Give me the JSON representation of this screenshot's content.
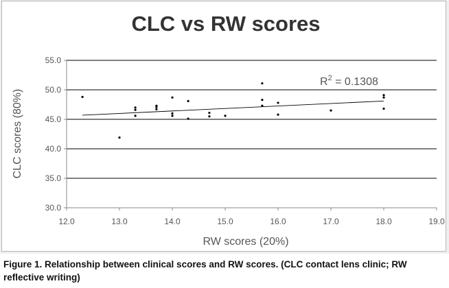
{
  "chart_data": {
    "type": "scatter",
    "title": "CLC vs RW scores",
    "xlabel": "RW scores (20%)",
    "ylabel": "CLC scores (80%)",
    "xlim": [
      12.0,
      19.0
    ],
    "ylim": [
      30.0,
      55.0
    ],
    "xticks": [
      "12.0",
      "13.0",
      "14.0",
      "15.0",
      "16.0",
      "17.0",
      "18.0",
      "19.0"
    ],
    "yticks": [
      "30.0",
      "35.0",
      "40.0",
      "45.0",
      "50.0",
      "55.0"
    ],
    "grid": "horizontal",
    "points": [
      {
        "x": 12.3,
        "y": 48.8
      },
      {
        "x": 13.0,
        "y": 41.9
      },
      {
        "x": 13.3,
        "y": 47.0
      },
      {
        "x": 13.3,
        "y": 46.6
      },
      {
        "x": 13.3,
        "y": 45.6
      },
      {
        "x": 13.7,
        "y": 47.3
      },
      {
        "x": 13.7,
        "y": 47.1
      },
      {
        "x": 13.7,
        "y": 46.7
      },
      {
        "x": 14.0,
        "y": 48.7
      },
      {
        "x": 14.0,
        "y": 46.0
      },
      {
        "x": 14.0,
        "y": 45.6
      },
      {
        "x": 14.3,
        "y": 48.1
      },
      {
        "x": 14.3,
        "y": 45.1
      },
      {
        "x": 14.7,
        "y": 46.1
      },
      {
        "x": 14.7,
        "y": 45.5
      },
      {
        "x": 15.0,
        "y": 45.6
      },
      {
        "x": 15.7,
        "y": 51.1
      },
      {
        "x": 15.7,
        "y": 48.3
      },
      {
        "x": 15.7,
        "y": 47.3
      },
      {
        "x": 16.0,
        "y": 47.8
      },
      {
        "x": 16.0,
        "y": 45.8
      },
      {
        "x": 17.0,
        "y": 46.5
      },
      {
        "x": 18.0,
        "y": 49.1
      },
      {
        "x": 18.0,
        "y": 48.7
      },
      {
        "x": 18.0,
        "y": 46.8
      }
    ],
    "trendline": {
      "x": [
        12.3,
        18.0
      ],
      "y": [
        45.7,
        48.1
      ]
    },
    "annotation": {
      "label": "R",
      "superscript": "2",
      "value": " = 0.1308"
    }
  },
  "colors": {
    "points": "#000000",
    "trendline": "#000000",
    "grid": "#000000",
    "axis": "#888888",
    "panel": "#efefef"
  },
  "caption": "Figure 1. Relationship between clinical scores and RW scores. (CLC contact lens clinic; RW reflective writing)"
}
